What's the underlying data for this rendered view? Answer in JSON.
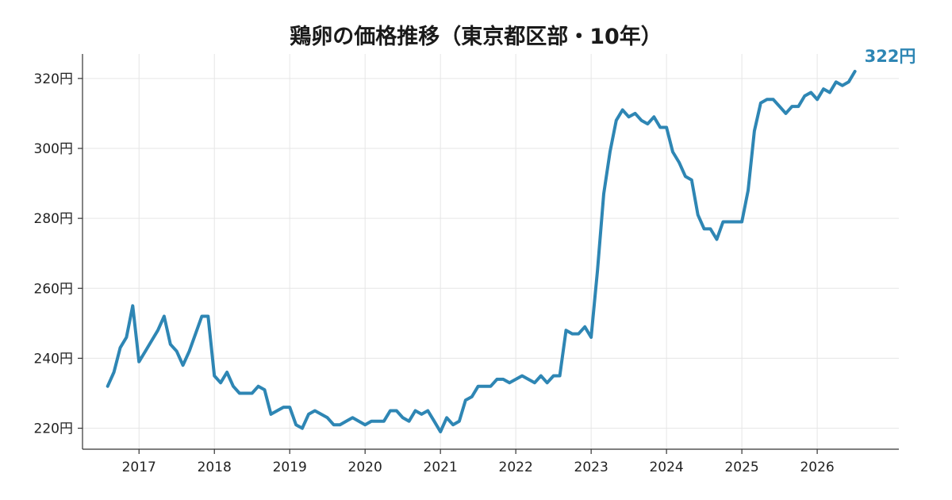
{
  "chart_data": {
    "type": "line",
    "title": "鶏卵の価格推移（東京都区部・10年）",
    "xlabel": "",
    "ylabel": "",
    "x_ticks": [
      "2017",
      "2018",
      "2019",
      "2020",
      "2021",
      "2022",
      "2023",
      "2024",
      "2025",
      "2026"
    ],
    "y_ticks": [
      "220円",
      "240円",
      "260円",
      "280円",
      "300円",
      "320円"
    ],
    "ylim": [
      214,
      327
    ],
    "xlim": [
      "2016-04",
      "2027-02"
    ],
    "grid": true,
    "end_label": "322円",
    "color": "#2e86b4",
    "x": [
      "2016-08",
      "2016-09",
      "2016-10",
      "2016-11",
      "2016-12",
      "2017-01",
      "2017-02",
      "2017-03",
      "2017-04",
      "2017-05",
      "2017-06",
      "2017-07",
      "2017-08",
      "2017-09",
      "2017-10",
      "2017-11",
      "2017-12",
      "2018-01",
      "2018-02",
      "2018-03",
      "2018-04",
      "2018-05",
      "2018-06",
      "2018-07",
      "2018-08",
      "2018-09",
      "2018-10",
      "2018-11",
      "2018-12",
      "2019-01",
      "2019-02",
      "2019-03",
      "2019-04",
      "2019-05",
      "2019-06",
      "2019-07",
      "2019-08",
      "2019-09",
      "2019-10",
      "2019-11",
      "2019-12",
      "2020-01",
      "2020-02",
      "2020-03",
      "2020-04",
      "2020-05",
      "2020-06",
      "2020-07",
      "2020-08",
      "2020-09",
      "2020-10",
      "2020-11",
      "2020-12",
      "2021-01",
      "2021-02",
      "2021-03",
      "2021-04",
      "2021-05",
      "2021-06",
      "2021-07",
      "2021-08",
      "2021-09",
      "2021-10",
      "2021-11",
      "2021-12",
      "2022-01",
      "2022-02",
      "2022-03",
      "2022-04",
      "2022-05",
      "2022-06",
      "2022-07",
      "2022-08",
      "2022-09",
      "2022-10",
      "2022-11",
      "2022-12",
      "2023-01",
      "2023-02",
      "2023-03",
      "2023-04",
      "2023-05",
      "2023-06",
      "2023-07",
      "2023-08",
      "2023-09",
      "2023-10",
      "2023-11",
      "2023-12",
      "2024-01",
      "2024-02",
      "2024-03",
      "2024-04",
      "2024-05",
      "2024-06",
      "2024-07",
      "2024-08",
      "2024-09",
      "2024-10",
      "2024-11",
      "2024-12",
      "2025-01",
      "2025-02",
      "2025-03",
      "2025-04",
      "2025-05",
      "2025-06",
      "2025-07",
      "2025-08",
      "2025-09",
      "2025-10",
      "2025-11",
      "2025-12",
      "2026-01",
      "2026-02",
      "2026-03",
      "2026-04",
      "2026-05",
      "2026-06",
      "2026-07"
    ],
    "values": [
      232,
      236,
      243,
      246,
      255,
      239,
      242,
      245,
      248,
      252,
      244,
      242,
      238,
      242,
      247,
      252,
      252,
      235,
      233,
      236,
      232,
      230,
      230,
      230,
      232,
      231,
      224,
      225,
      226,
      226,
      221,
      220,
      224,
      225,
      224,
      223,
      221,
      221,
      222,
      223,
      222,
      221,
      222,
      222,
      222,
      225,
      225,
      223,
      222,
      225,
      224,
      225,
      222,
      219,
      223,
      221,
      222,
      228,
      229,
      232,
      232,
      232,
      234,
      234,
      233,
      234,
      235,
      234,
      233,
      235,
      233,
      235,
      235,
      248,
      247,
      247,
      249,
      246,
      265,
      287,
      299,
      308,
      311,
      309,
      310,
      308,
      307,
      309,
      306,
      306,
      299,
      296,
      292,
      291,
      281,
      277,
      277,
      274,
      279,
      279,
      279,
      279,
      288,
      305,
      313,
      314,
      314,
      312,
      310,
      312,
      312,
      315,
      316,
      314,
      317,
      316,
      319,
      318,
      319,
      322
    ]
  }
}
